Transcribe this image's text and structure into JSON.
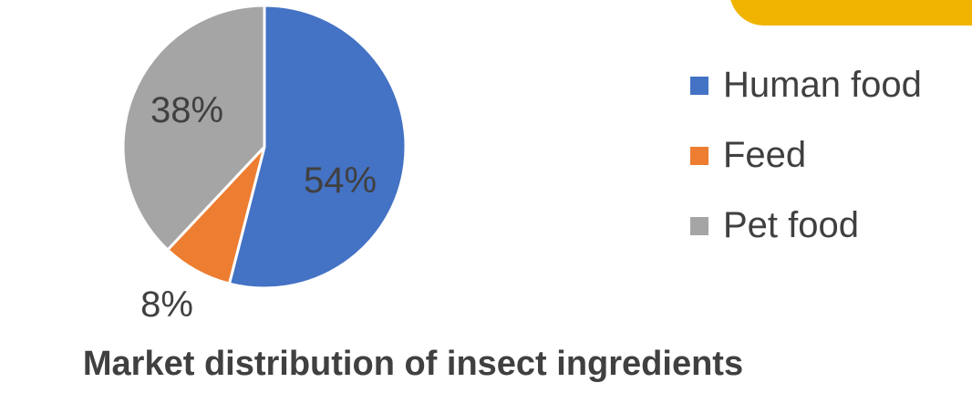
{
  "chart_data": {
    "type": "pie",
    "title": "Market distribution of insect ingredients",
    "categories": [
      "Human food",
      "Feed",
      "Pet food"
    ],
    "values": [
      54,
      8,
      38
    ],
    "data_labels": [
      "54%",
      "8%",
      "38%"
    ],
    "colors": [
      "#4472c4",
      "#ed7d31",
      "#a5a5a5"
    ],
    "legend_position": "right"
  },
  "decoration": {
    "tab_color": "#f0b400"
  }
}
